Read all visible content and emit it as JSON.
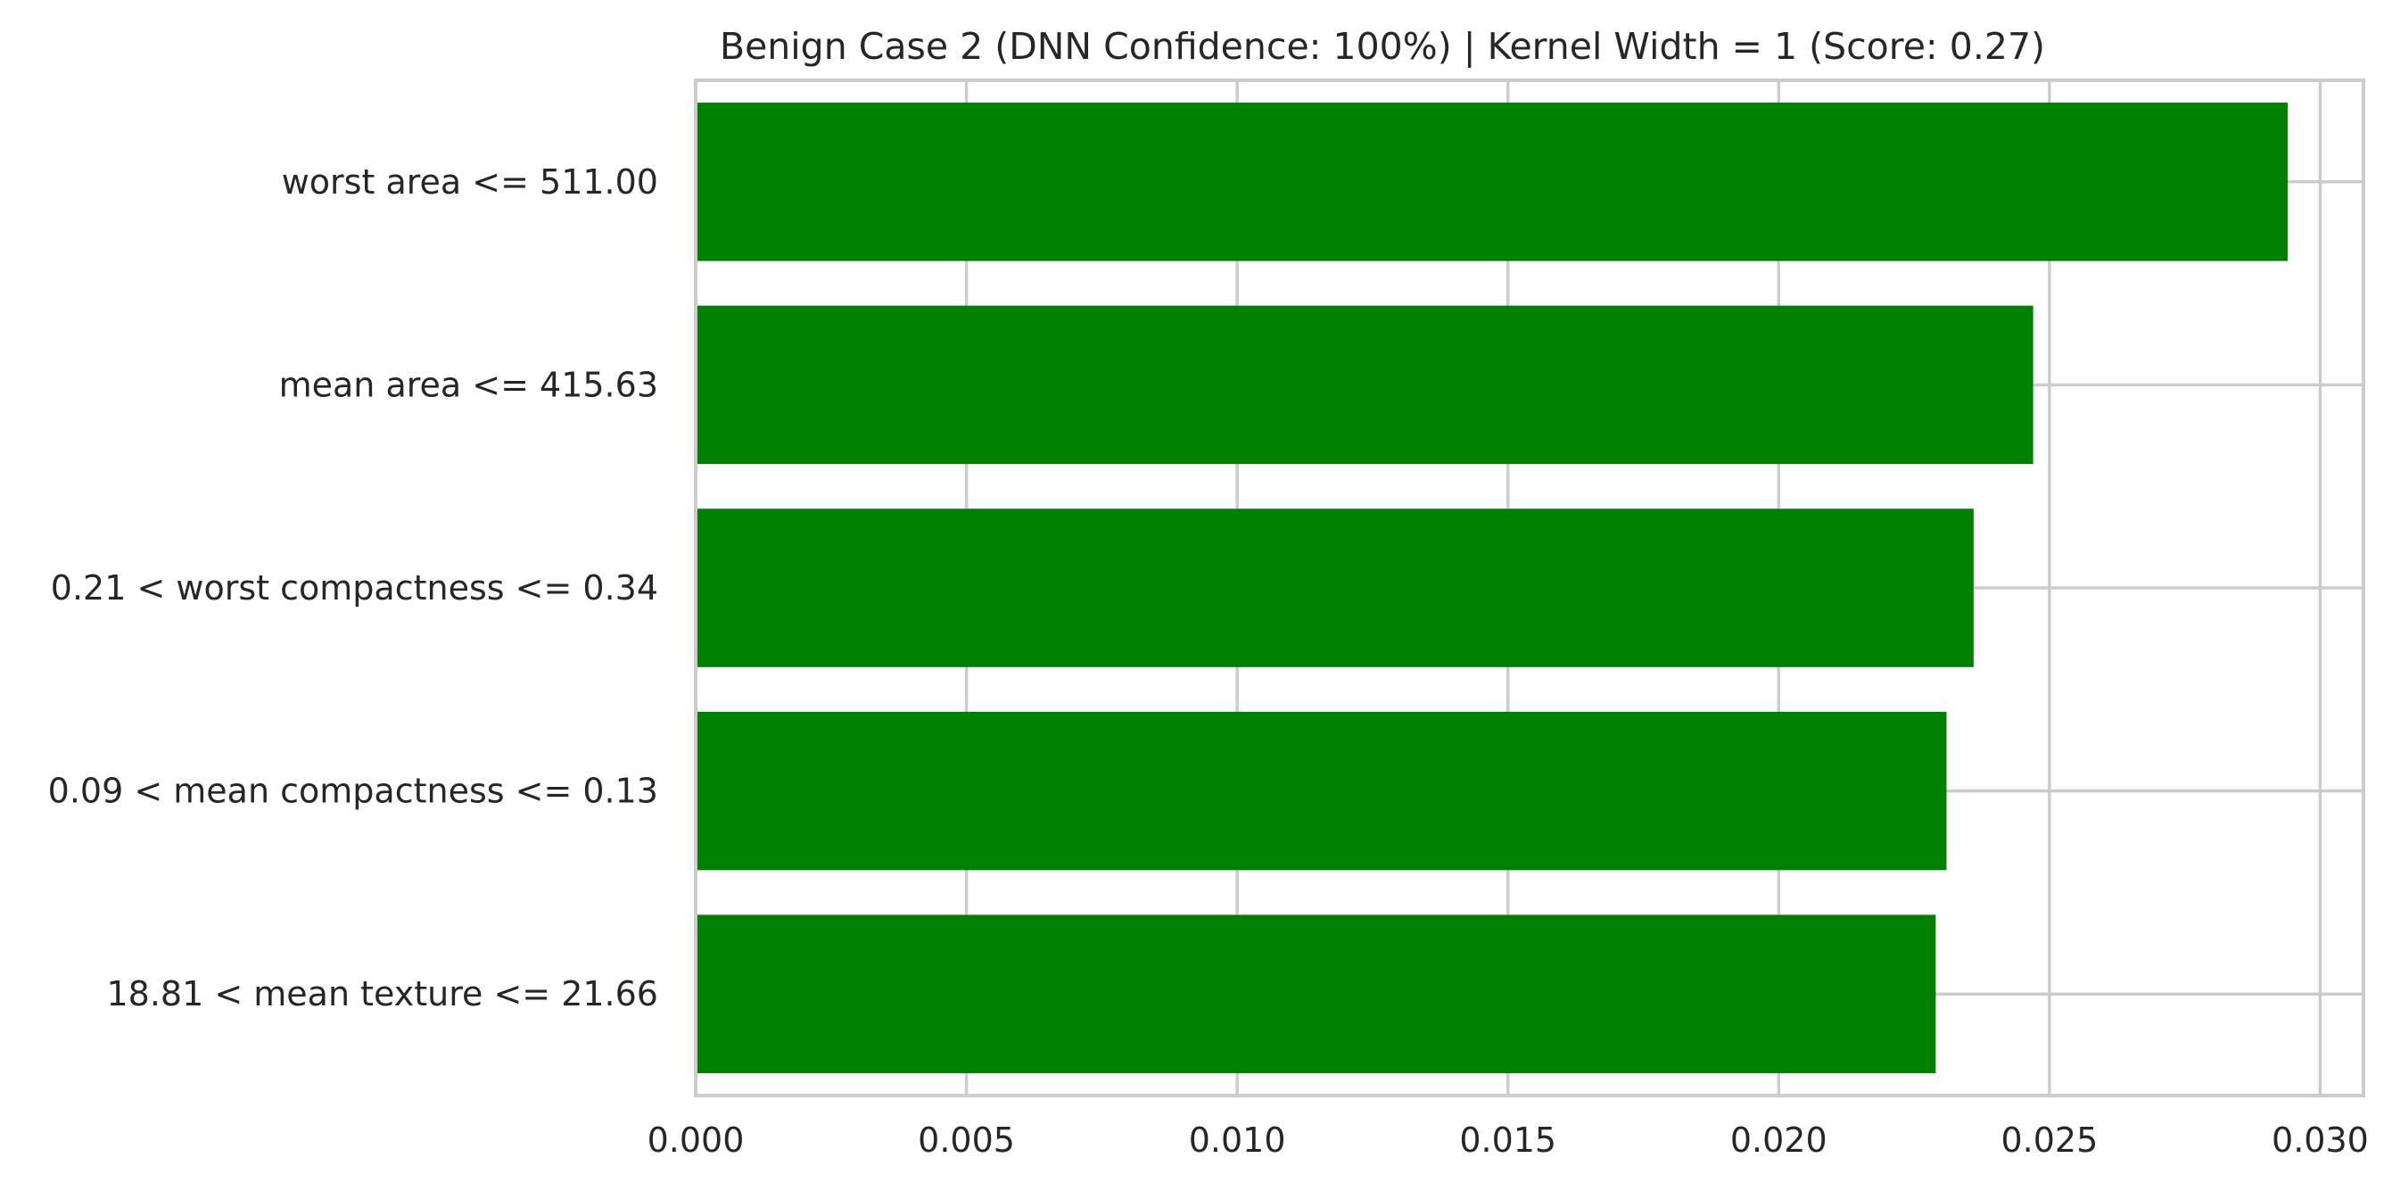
{
  "chart_data": {
    "type": "bar",
    "orientation": "horizontal",
    "title": "Benign Case 2 (DNN Confidence: 100%) | Kernel Width = 1 (Score: 0.27)",
    "xlabel": "",
    "ylabel": "",
    "categories": [
      "worst area <= 511.00",
      "mean area <= 415.63",
      "0.21 < worst compactness <= 0.34",
      "0.09 < mean compactness <= 0.13",
      "18.81 < mean texture <= 21.66"
    ],
    "values": [
      0.0294,
      0.0247,
      0.0236,
      0.0231,
      0.0229
    ],
    "xlim": [
      0.0,
      0.0308
    ],
    "x_ticks": [
      "0.000",
      "0.005",
      "0.010",
      "0.015",
      "0.020",
      "0.025",
      "0.030"
    ],
    "x_tick_values": [
      0.0,
      0.005,
      0.01,
      0.015,
      0.02,
      0.025,
      0.03
    ],
    "grid": true,
    "legend": "none",
    "colors": {
      "bar": "#008000",
      "grid": "#cccccc",
      "spine": "#cccccc",
      "text": "#262626",
      "background": "#ffffff"
    }
  }
}
